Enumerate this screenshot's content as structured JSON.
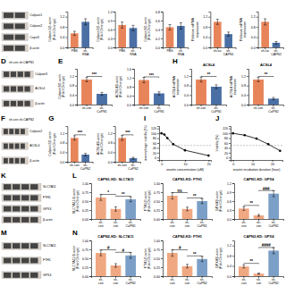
{
  "chart_data": [
    {
      "type": "blot",
      "categories": [
        "Calpain1",
        "Calpain2",
        "Capn3",
        "β-actin"
      ],
      "lanes": 2,
      "color": "#444444"
    },
    {
      "type": "bar",
      "categories": [
        "PBS",
        "sh-\nRNA"
      ],
      "values": [
        0.55,
        1.0
      ],
      "errors": [
        0.08,
        0.12
      ],
      "colors": [
        "#E8845A",
        "#4A6FA5"
      ],
      "ylabel": "Calpain1/β-actin\n(Fold Change)",
      "ylim": [
        0,
        1.4
      ],
      "yticks": [
        {
          "value": 0,
          "label": "0.0"
        },
        0.4,
        0.8,
        1.2
      ]
    },
    {
      "type": "bar",
      "categories": [
        "PBS",
        "sh-\nRNA"
      ],
      "values": [
        0.75,
        0.65
      ],
      "errors": [
        0.1,
        0.09
      ],
      "colors": [
        "#E8845A",
        "#4A6FA5"
      ],
      "ylabel": "Calpain2/β-actin\n(Fold Change)",
      "ylim": [
        0,
        1.2
      ],
      "yticks": [
        {
          "value": 0,
          "label": "0.0"
        },
        0.3,
        0.6,
        0.9,
        1.2
      ]
    },
    {
      "type": "bar",
      "categories": [
        "PBS",
        "sh-\nRNA"
      ],
      "values": [
        0.45,
        0.48
      ],
      "errors": [
        0.06,
        0.07
      ],
      "colors": [
        "#E8845A",
        "#4A6FA5"
      ],
      "ylabel": "Calpain3/β-actin\n(Fold Change)",
      "ylim": [
        0,
        0.8
      ],
      "yticks": [
        {
          "value": 0,
          "label": "0.0"
        },
        0.2,
        0.4,
        0.6,
        0.8
      ]
    },
    {
      "type": "bar",
      "categories": [
        "sh-luc",
        "sh-\nCAPN1"
      ],
      "values": [
        1.0,
        0.52
      ],
      "errors": [
        0.1,
        0.08
      ],
      "colors": [
        "#E8845A",
        "#4A6FA5"
      ],
      "ylabel": "Relative mRNA\nexpression",
      "ylim": [
        0,
        1.4
      ],
      "yticks": [
        {
          "value": 0,
          "label": "0.0"
        },
        0.4,
        0.8,
        1.2
      ]
    },
    {
      "type": "bar",
      "categories": [
        "sh-luc",
        "sh-\nCAPN2"
      ],
      "values": [
        1.0,
        0.18
      ],
      "errors": [
        0.12,
        0.05
      ],
      "colors": [
        "#E8845A",
        "#4A6FA5"
      ],
      "ylabel": "Relative mRNA\nexpression",
      "ylim": [
        0,
        1.4
      ],
      "yticks": [
        {
          "value": 0,
          "label": "0.0"
        },
        0.4,
        0.8,
        1.2
      ]
    },
    {
      "type": "blot",
      "categories": [
        "Calpain3",
        "ACSL4",
        "β-actin"
      ],
      "lanes": 4,
      "color": "#444444",
      "panel_label": "D",
      "annotations": [
        {
          "text": "sh-con sh-CAPN1"
        }
      ]
    },
    {
      "type": "bar",
      "categories": [
        "sh-con",
        "sh-\nCaPN1"
      ],
      "values": [
        1.05,
        0.45
      ],
      "errors": [
        0.09,
        0.06
      ],
      "colors": [
        "#E8845A",
        "#4A6FA5"
      ],
      "ylabel": "Calpain3/β-actin\n(Fold Change)",
      "ylim": [
        0,
        1.5
      ],
      "yticks": [
        {
          "value": 0,
          "label": "0.0"
        },
        0.4,
        0.8,
        1.2
      ],
      "annotations": [
        {
          "text": "***",
          "from": 0,
          "to": 1
        }
      ],
      "panel_label": "E"
    },
    {
      "type": "bar",
      "categories": [
        "sh-con",
        "sh-\nCaPN1"
      ],
      "values": [
        1.1,
        0.5
      ],
      "errors": [
        0.12,
        0.07
      ],
      "colors": [
        "#E8845A",
        "#4A6FA5"
      ],
      "ylabel": "ACSL4/β-actin\n(Fold Change)",
      "ylim": [
        0,
        1.6
      ],
      "yticks": [
        {
          "value": 0,
          "label": "0.0"
        },
        0.4,
        0.8,
        1.2,
        1.6
      ],
      "annotations": [
        {
          "text": "***",
          "from": 0,
          "to": 1
        }
      ]
    },
    {
      "type": "bar",
      "title": "ACSL4",
      "categories": [
        "sh-con",
        "sh-\nCaPN1"
      ],
      "values": [
        1.05,
        0.75
      ],
      "errors": [
        0.1,
        0.08
      ],
      "colors": [
        "#E8845A",
        "#4A6FA5"
      ],
      "ylabel": "ACSL4 mRNA\nexpression",
      "ylim": [
        0,
        1.5
      ],
      "yticks": [
        {
          "value": 0,
          "label": "0.0"
        },
        0.4,
        0.8,
        1.2
      ],
      "annotations": [
        {
          "text": "**",
          "from": 0,
          "to": 1
        }
      ],
      "panel_label": "H"
    },
    {
      "type": "bar",
      "title": "ACSL4",
      "categories": [
        "sh-con",
        "sh-\nCaPN2"
      ],
      "values": [
        1.05,
        0.25
      ],
      "errors": [
        0.09,
        0.05
      ],
      "colors": [
        "#E8845A",
        "#4A6FA5"
      ],
      "ylabel": "ACSL4 mRNA\nexpression",
      "ylim": [
        0,
        1.5
      ],
      "yticks": [
        {
          "value": 0,
          "label": "0.0"
        },
        0.4,
        0.8,
        1.2
      ],
      "annotations": [
        {
          "text": "**",
          "from": 0,
          "to": 1
        }
      ]
    },
    {
      "type": "blot",
      "categories": [
        "Calpain2",
        "ACSL4",
        "β-actin"
      ],
      "lanes": 4,
      "color": "#444444",
      "panel_label": "F",
      "annotations": [
        {
          "text": "sh-con sh-CAPN2"
        }
      ]
    },
    {
      "type": "bar",
      "categories": [
        "sh-con",
        "sh-\nCaPN2"
      ],
      "values": [
        1.0,
        0.3
      ],
      "errors": [
        0.09,
        0.05
      ],
      "colors": [
        "#E8845A",
        "#4A6FA5"
      ],
      "ylabel": "Calpain2/β-actin\n(Fold Change)",
      "ylim": [
        0,
        1.5
      ],
      "yticks": [
        {
          "value": 0,
          "label": "0.0"
        },
        0.4,
        0.8,
        1.2
      ],
      "annotations": [
        {
          "text": "***",
          "from": 0,
          "to": 1
        }
      ],
      "panel_label": "G"
    },
    {
      "type": "bar",
      "categories": [
        "sh-con",
        "sh-\nCaPN2"
      ],
      "values": [
        1.0,
        0.15
      ],
      "errors": [
        0.1,
        0.04
      ],
      "colors": [
        "#E8845A",
        "#4A6FA5"
      ],
      "ylabel": "ACSL4/β-actin\n(Fold Change)",
      "ylim": [
        0,
        1.5
      ],
      "yticks": [
        {
          "value": 0,
          "label": "0.0"
        },
        0.4,
        0.8,
        1.2
      ],
      "annotations": [
        {
          "text": "***",
          "from": 0,
          "to": 1
        }
      ]
    },
    {
      "type": "line",
      "x": [
        0,
        1.25,
        2.5,
        5,
        10,
        20
      ],
      "values": [
        100,
        95,
        80,
        55,
        30,
        8
      ],
      "xlabel": "erastin concentration (uM)",
      "ylabel": "macrophage viability (%)",
      "xlim": [
        -1,
        21
      ],
      "xticks": [
        0,
        10,
        20
      ],
      "ylim": [
        -10,
        130
      ],
      "yticks": [
        0,
        20,
        40,
        60,
        80,
        100,
        120
      ],
      "color": "#000000",
      "marker": "circle",
      "line_style": "solid",
      "hline": 50,
      "panel_label": "I"
    },
    {
      "type": "line",
      "x": [
        0,
        6,
        12,
        18,
        24
      ],
      "values": [
        100,
        92,
        78,
        55,
        28
      ],
      "xlabel": "erastin incubation duration (hour)",
      "ylabel": "Viability (%)",
      "xlim": [
        -1.2,
        25.2
      ],
      "xticks": [
        0,
        10,
        20
      ],
      "ylim": [
        -10,
        130
      ],
      "yticks": [
        0,
        20,
        40,
        60,
        80,
        100,
        120
      ],
      "color": "#000000",
      "marker": "circle",
      "line_style": "solid",
      "hline": 50,
      "panel_label": "J"
    },
    {
      "type": "blot",
      "categories": [
        "SLC7A11",
        "FTH1",
        "GPX4",
        "β-actin"
      ],
      "lanes": 4,
      "color": "#444444",
      "panel_label": "K"
    },
    {
      "type": "bar",
      "title": "CAPN1-KD: SLC7A11",
      "categories": [
        "sh-\ncon",
        "sh-\ncon",
        "sh-\nCaPN1"
      ],
      "values": [
        0.6,
        0.28,
        0.55
      ],
      "errors": [
        0.08,
        0.06,
        0.07
      ],
      "colors": [
        "#F0A882",
        "#F0A882",
        "#7B9FC7"
      ],
      "ylabel": "SLC7A11/β-actin\n(Fold Change)",
      "ylim": [
        0,
        1.0
      ],
      "yticks": [
        {
          "value": 0,
          "label": "0.00"
        },
        0.25,
        {
          "value": 0.5,
          "label": "0.50"
        },
        0.75,
        {
          "value": 1,
          "label": "1.00"
        }
      ],
      "annotations": [
        {
          "text": "*",
          "from": 0,
          "to": 1
        },
        {
          "text": "**",
          "from": 1,
          "to": 2
        }
      ],
      "panel_label": "L"
    },
    {
      "type": "bar",
      "title": "CAPN1-KD: FTH1",
      "categories": [
        "sh-\ncon",
        "sh-\ncon",
        "sh-\nCaPN1"
      ],
      "values": [
        0.65,
        0.28,
        0.5
      ],
      "errors": [
        0.09,
        0.05,
        0.07
      ],
      "colors": [
        "#F0A882",
        "#F0A882",
        "#7B9FC7"
      ],
      "ylabel": "FTH1/β-actin\n(Fold Change)",
      "ylim": [
        0,
        1.0
      ],
      "yticks": [
        {
          "value": 0,
          "label": "0.00"
        },
        0.25,
        {
          "value": 0.5,
          "label": "0.50"
        },
        0.75,
        {
          "value": 1,
          "label": "1.00"
        }
      ],
      "annotations": [
        {
          "text": "ns",
          "from": 0,
          "to": 1
        },
        {
          "text": "**",
          "from": 1,
          "to": 2
        }
      ]
    },
    {
      "type": "bar",
      "title": "CAPN1-KD: GPX4",
      "categories": [
        "sh-\ncon",
        "sh-\ncon",
        "sh-\nCaPN1"
      ],
      "values": [
        0.35,
        0.12,
        0.85
      ],
      "errors": [
        0.06,
        0.03,
        0.1
      ],
      "colors": [
        "#F0A882",
        "#F0A882",
        "#7B9FC7"
      ],
      "ylabel": "GPX4/β-actin\n(Fold Change)",
      "ylim": [
        0,
        1.2
      ],
      "yticks": [
        {
          "value": 0,
          "label": "0.0"
        },
        0.3,
        0.6,
        0.9,
        1.2
      ],
      "annotations": [
        {
          "text": "**",
          "from": 0,
          "to": 1
        },
        {
          "text": "###",
          "from": 1,
          "to": 2
        }
      ]
    },
    {
      "type": "blot",
      "categories": [
        "SLC7A11",
        "FTH1",
        "GPX4"
      ],
      "lanes": 4,
      "color": "#444444",
      "panel_label": "M"
    },
    {
      "type": "bar",
      "title": "CAPN2-KD: SLC7A11",
      "categories": [
        "sh-\ncon",
        "sh-\ncon",
        "sh-\nCaPN2"
      ],
      "values": [
        0.65,
        0.3,
        0.58
      ],
      "errors": [
        0.08,
        0.05,
        0.08
      ],
      "colors": [
        "#F0A882",
        "#F0A882",
        "#7B9FC7"
      ],
      "ylabel": "SLC7A11/β-actin\n(Fold Change)",
      "ylim": [
        0,
        1.0
      ],
      "yticks": [
        {
          "value": 0,
          "label": "0.00"
        },
        0.25,
        {
          "value": 0.5,
          "label": "0.50"
        },
        0.75,
        {
          "value": 1,
          "label": "1.00"
        }
      ],
      "annotations": [
        {
          "text": "#",
          "from": 0,
          "to": 1
        },
        {
          "text": "#",
          "from": 1,
          "to": 2
        }
      ],
      "panel_label": "N"
    },
    {
      "type": "bar",
      "title": "CAPN2-KD: FTH1",
      "categories": [
        "sh-\ncon",
        "sh-\ncon",
        "sh-\nCaPN2"
      ],
      "values": [
        0.65,
        0.28,
        0.48
      ],
      "errors": [
        0.09,
        0.05,
        0.07
      ],
      "colors": [
        "#F0A882",
        "#F0A882",
        "#7B9FC7"
      ],
      "ylabel": "FTH1/β-actin\n(Fold Change)",
      "ylim": [
        0,
        1.0
      ],
      "yticks": [
        {
          "value": 0,
          "label": "0.00"
        },
        0.25,
        {
          "value": 0.5,
          "label": "0.50"
        },
        0.75,
        {
          "value": 1,
          "label": "1.00"
        }
      ],
      "annotations": [
        {
          "text": "#",
          "from": 0,
          "to": 1
        },
        {
          "text": "**",
          "from": 1,
          "to": 2
        }
      ]
    },
    {
      "type": "bar",
      "title": "CAPN2-KD: GPX4",
      "categories": [
        "sh-\ncon",
        "sh-\ncon",
        "sh-\nCaPN2"
      ],
      "values": [
        0.38,
        0.1,
        1.0
      ],
      "errors": [
        0.06,
        0.02,
        0.12
      ],
      "colors": [
        "#F0A882",
        "#F0A882",
        "#7B9FC7"
      ],
      "ylabel": "GPX4/β-actin\n(Fold Change)",
      "ylim": [
        0,
        1.4
      ],
      "yticks": [
        {
          "value": 0,
          "label": "0.0"
        },
        0.4,
        0.8,
        1.2
      ],
      "annotations": [
        {
          "text": "**",
          "from": 0,
          "to": 1
        },
        {
          "text": "####",
          "from": 1,
          "to": 2
        }
      ]
    }
  ]
}
